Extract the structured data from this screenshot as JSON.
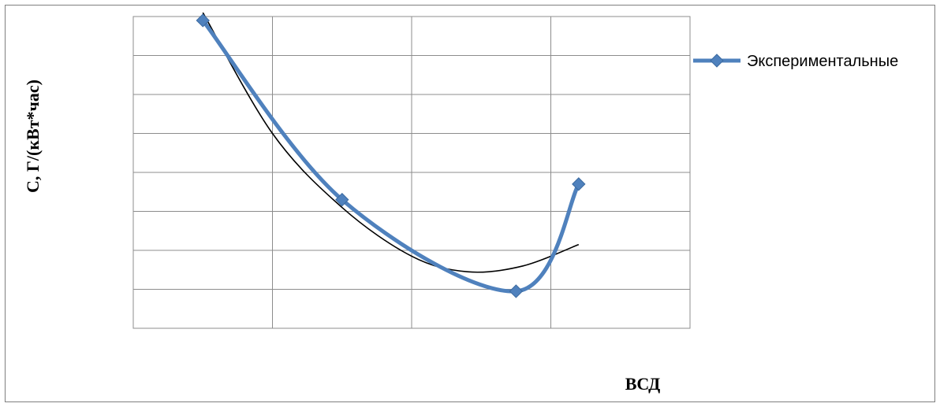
{
  "chart_data": {
    "type": "line",
    "title": "",
    "xlabel": "ВСД",
    "ylabel": "С, Г/(кВт*час)",
    "legend": {
      "position": "right",
      "entries": [
        "Экспериментальные"
      ]
    },
    "grid": true,
    "xlim": [
      0,
      4
    ],
    "ylim": [
      0,
      8
    ],
    "series": [
      {
        "name": "Экспериментальные",
        "color": "#4F81BD",
        "marker": "diamond",
        "smooth": true,
        "points": [
          {
            "x": 0.5,
            "y": 7.9
          },
          {
            "x": 1.5,
            "y": 3.3
          },
          {
            "x": 2.75,
            "y": 0.95
          },
          {
            "x": 3.2,
            "y": 3.7
          }
        ]
      },
      {
        "role": "trendline",
        "color": "#000000",
        "smooth": true,
        "points": [
          {
            "x": 0.5,
            "y": 8.1
          },
          {
            "x": 1.0,
            "y": 5.0
          },
          {
            "x": 1.5,
            "y": 3.1
          },
          {
            "x": 2.0,
            "y": 1.85
          },
          {
            "x": 2.4,
            "y": 1.45
          },
          {
            "x": 2.8,
            "y": 1.6
          },
          {
            "x": 3.2,
            "y": 2.15
          }
        ]
      }
    ]
  }
}
